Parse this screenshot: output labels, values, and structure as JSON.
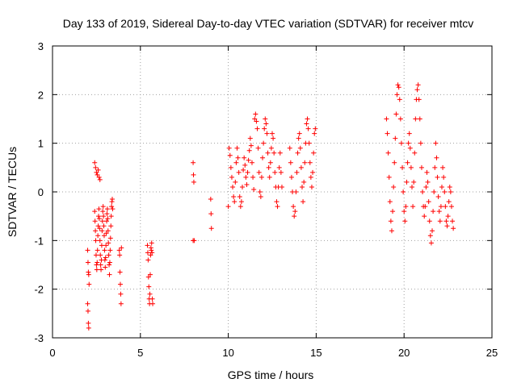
{
  "chart_data": {
    "type": "scatter",
    "title": "Day 133 of 2019, Sidereal Day-to-day VTEC variation (SDTVAR) for receiver mtcv",
    "xlabel": "GPS time / hours",
    "ylabel": "SDTVAR / TECUs",
    "xlim": [
      0,
      25
    ],
    "ylim": [
      -3,
      3
    ],
    "xticks": [
      0,
      5,
      10,
      15,
      20,
      25
    ],
    "yticks": [
      -3,
      -2,
      -1,
      0,
      1,
      2,
      3
    ],
    "xtick_labels": [
      "0",
      "5",
      "10",
      "15",
      "20",
      "25"
    ],
    "ytick_labels": [
      "-3",
      "-2",
      "-1",
      "0",
      "1",
      "2",
      "3"
    ],
    "grid": true,
    "marker": "+",
    "series_color": "#ff0000",
    "series": [
      {
        "name": "SDTVAR",
        "points": [
          [
            2.0,
            -1.2
          ],
          [
            2.02,
            -1.45
          ],
          [
            2.04,
            -1.65
          ],
          [
            2.06,
            -1.7
          ],
          [
            2.0,
            -2.3
          ],
          [
            2.02,
            -2.45
          ],
          [
            2.04,
            -2.7
          ],
          [
            2.06,
            -2.8
          ],
          [
            2.08,
            -1.9
          ],
          [
            2.4,
            0.6
          ],
          [
            2.45,
            0.5
          ],
          [
            2.5,
            0.4
          ],
          [
            2.55,
            0.35
          ],
          [
            2.6,
            0.45
          ],
          [
            2.65,
            0.3
          ],
          [
            2.7,
            0.25
          ],
          [
            2.4,
            -0.4
          ],
          [
            2.42,
            -0.6
          ],
          [
            2.44,
            -0.8
          ],
          [
            2.46,
            -1.0
          ],
          [
            2.48,
            -1.3
          ],
          [
            2.5,
            -1.5
          ],
          [
            2.52,
            -1.6
          ],
          [
            2.54,
            -1.45
          ],
          [
            2.56,
            -1.2
          ],
          [
            2.58,
            -0.9
          ],
          [
            2.6,
            -0.7
          ],
          [
            2.62,
            -0.5
          ],
          [
            2.64,
            -0.35
          ],
          [
            2.66,
            -0.55
          ],
          [
            2.68,
            -0.75
          ],
          [
            2.7,
            -1.0
          ],
          [
            2.72,
            -1.3
          ],
          [
            2.74,
            -1.5
          ],
          [
            2.76,
            -1.6
          ],
          [
            2.78,
            -1.4
          ],
          [
            2.8,
            -1.1
          ],
          [
            2.82,
            -0.8
          ],
          [
            2.84,
            -0.6
          ],
          [
            2.86,
            -0.4
          ],
          [
            2.88,
            -0.3
          ],
          [
            2.9,
            -0.5
          ],
          [
            2.92,
            -0.7
          ],
          [
            2.94,
            -0.9
          ],
          [
            2.96,
            -1.2
          ],
          [
            2.98,
            -1.4
          ],
          [
            3.0,
            -1.55
          ],
          [
            3.02,
            -1.35
          ],
          [
            3.04,
            -1.1
          ],
          [
            3.06,
            -0.85
          ],
          [
            3.08,
            -0.6
          ],
          [
            3.1,
            -0.45
          ],
          [
            3.12,
            -0.35
          ],
          [
            3.14,
            -0.55
          ],
          [
            3.16,
            -0.8
          ],
          [
            3.18,
            -1.05
          ],
          [
            3.2,
            -1.3
          ],
          [
            3.22,
            -1.5
          ],
          [
            3.24,
            -1.7
          ],
          [
            3.26,
            -1.45
          ],
          [
            3.28,
            -1.2
          ],
          [
            3.3,
            -0.95
          ],
          [
            3.32,
            -0.7
          ],
          [
            3.34,
            -0.5
          ],
          [
            3.36,
            -0.3
          ],
          [
            3.38,
            -0.2
          ],
          [
            3.4,
            -0.15
          ],
          [
            3.42,
            -0.35
          ],
          [
            3.8,
            -1.2
          ],
          [
            3.82,
            -1.3
          ],
          [
            3.84,
            -1.65
          ],
          [
            3.86,
            -1.9
          ],
          [
            3.88,
            -2.1
          ],
          [
            3.9,
            -2.3
          ],
          [
            3.92,
            -1.15
          ],
          [
            5.4,
            -1.1
          ],
          [
            5.42,
            -1.25
          ],
          [
            5.44,
            -1.4
          ],
          [
            5.46,
            -1.75
          ],
          [
            5.48,
            -1.95
          ],
          [
            5.5,
            -2.2
          ],
          [
            5.52,
            -2.3
          ],
          [
            5.54,
            -2.1
          ],
          [
            5.56,
            -1.7
          ],
          [
            5.58,
            -1.3
          ],
          [
            5.6,
            -1.15
          ],
          [
            5.62,
            -1.2
          ],
          [
            5.64,
            -1.05
          ],
          [
            5.66,
            -1.25
          ],
          [
            5.68,
            -2.2
          ],
          [
            5.7,
            -2.3
          ],
          [
            8.0,
            0.6
          ],
          [
            8.02,
            0.35
          ],
          [
            8.04,
            0.2
          ],
          [
            8.06,
            -1.0
          ],
          [
            8.0,
            -1.0
          ],
          [
            9.0,
            -0.15
          ],
          [
            9.02,
            -0.45
          ],
          [
            9.04,
            -0.75
          ],
          [
            10.0,
            -0.3
          ],
          [
            10.05,
            0.9
          ],
          [
            10.1,
            0.75
          ],
          [
            10.15,
            0.5
          ],
          [
            10.2,
            0.3
          ],
          [
            10.25,
            0.1
          ],
          [
            10.3,
            -0.1
          ],
          [
            10.35,
            -0.2
          ],
          [
            10.4,
            0.2
          ],
          [
            10.45,
            0.6
          ],
          [
            10.5,
            0.9
          ],
          [
            10.55,
            0.7
          ],
          [
            10.6,
            0.4
          ],
          [
            10.65,
            -0.1
          ],
          [
            10.7,
            -0.3
          ],
          [
            10.75,
            -0.2
          ],
          [
            10.8,
            0.1
          ],
          [
            10.85,
            0.45
          ],
          [
            10.9,
            0.7
          ],
          [
            10.95,
            0.55
          ],
          [
            11.0,
            0.3
          ],
          [
            11.05,
            0.15
          ],
          [
            11.1,
            0.4
          ],
          [
            11.15,
            0.65
          ],
          [
            11.2,
            0.85
          ],
          [
            11.25,
            1.1
          ],
          [
            11.3,
            0.95
          ],
          [
            11.35,
            0.6
          ],
          [
            11.4,
            0.3
          ],
          [
            11.45,
            0.05
          ],
          [
            11.5,
            1.5
          ],
          [
            11.55,
            1.6
          ],
          [
            11.6,
            1.45
          ],
          [
            11.65,
            1.3
          ],
          [
            11.7,
            0.9
          ],
          [
            11.75,
            0.4
          ],
          [
            11.8,
            0.0
          ],
          [
            11.85,
            -0.1
          ],
          [
            11.9,
            0.3
          ],
          [
            11.95,
            0.7
          ],
          [
            12.0,
            1.0
          ],
          [
            12.05,
            1.3
          ],
          [
            12.1,
            1.5
          ],
          [
            12.15,
            1.4
          ],
          [
            12.2,
            1.2
          ],
          [
            12.25,
            0.8
          ],
          [
            12.3,
            0.5
          ],
          [
            12.35,
            0.3
          ],
          [
            12.4,
            0.6
          ],
          [
            12.45,
            0.9
          ],
          [
            12.5,
            1.2
          ],
          [
            12.55,
            1.1
          ],
          [
            12.6,
            0.8
          ],
          [
            12.65,
            0.4
          ],
          [
            12.7,
            0.1
          ],
          [
            12.75,
            -0.2
          ],
          [
            12.8,
            -0.3
          ],
          [
            12.85,
            0.1
          ],
          [
            12.9,
            0.5
          ],
          [
            12.95,
            0.8
          ],
          [
            13.0,
            0.4
          ],
          [
            13.05,
            0.1
          ],
          [
            13.5,
            0.9
          ],
          [
            13.55,
            0.6
          ],
          [
            13.6,
            0.3
          ],
          [
            13.65,
            0.0
          ],
          [
            13.7,
            -0.3
          ],
          [
            13.75,
            -0.5
          ],
          [
            13.8,
            -0.4
          ],
          [
            13.85,
            0.0
          ],
          [
            13.9,
            0.4
          ],
          [
            13.95,
            0.8
          ],
          [
            14.0,
            1.1
          ],
          [
            14.05,
            1.2
          ],
          [
            14.1,
            0.9
          ],
          [
            14.15,
            0.5
          ],
          [
            14.2,
            0.1
          ],
          [
            14.25,
            -0.2
          ],
          [
            14.3,
            0.2
          ],
          [
            14.35,
            0.6
          ],
          [
            14.4,
            1.0
          ],
          [
            14.45,
            1.4
          ],
          [
            14.5,
            1.5
          ],
          [
            14.55,
            1.3
          ],
          [
            14.6,
            1.0
          ],
          [
            14.65,
            0.6
          ],
          [
            14.7,
            0.3
          ],
          [
            14.75,
            0.1
          ],
          [
            14.8,
            0.4
          ],
          [
            14.85,
            0.8
          ],
          [
            14.9,
            1.2
          ],
          [
            14.95,
            1.3
          ],
          [
            19.0,
            1.5
          ],
          [
            19.05,
            1.2
          ],
          [
            19.1,
            0.8
          ],
          [
            19.15,
            0.3
          ],
          [
            19.2,
            -0.2
          ],
          [
            19.25,
            -0.6
          ],
          [
            19.3,
            -0.8
          ],
          [
            19.35,
            -0.4
          ],
          [
            19.4,
            0.1
          ],
          [
            19.45,
            0.6
          ],
          [
            19.5,
            1.1
          ],
          [
            19.55,
            1.6
          ],
          [
            19.6,
            2.0
          ],
          [
            19.65,
            2.2
          ],
          [
            19.7,
            2.15
          ],
          [
            19.75,
            1.9
          ],
          [
            19.8,
            1.5
          ],
          [
            19.85,
            1.0
          ],
          [
            19.9,
            0.5
          ],
          [
            19.95,
            0.0
          ],
          [
            20.0,
            -0.4
          ],
          [
            20.05,
            -0.6
          ],
          [
            20.1,
            -0.3
          ],
          [
            20.15,
            0.2
          ],
          [
            20.2,
            0.6
          ],
          [
            20.25,
            1.0
          ],
          [
            20.3,
            1.2
          ],
          [
            20.35,
            0.9
          ],
          [
            20.4,
            0.5
          ],
          [
            20.45,
            0.1
          ],
          [
            20.5,
            -0.3
          ],
          [
            20.55,
            0.2
          ],
          [
            20.6,
            0.8
          ],
          [
            20.65,
            1.5
          ],
          [
            20.7,
            1.9
          ],
          [
            20.75,
            2.1
          ],
          [
            20.8,
            2.2
          ],
          [
            20.85,
            1.9
          ],
          [
            20.9,
            1.5
          ],
          [
            20.95,
            1.0
          ],
          [
            21.0,
            0.5
          ],
          [
            21.05,
            0.0
          ],
          [
            21.1,
            -0.3
          ],
          [
            21.15,
            -0.5
          ],
          [
            21.2,
            -0.3
          ],
          [
            21.25,
            0.1
          ],
          [
            21.3,
            0.4
          ],
          [
            21.35,
            0.2
          ],
          [
            21.4,
            -0.2
          ],
          [
            21.45,
            -0.6
          ],
          [
            21.5,
            -0.9
          ],
          [
            21.55,
            -1.05
          ],
          [
            21.6,
            -0.8
          ],
          [
            21.65,
            -0.4
          ],
          [
            21.7,
            0.0
          ],
          [
            21.75,
            0.5
          ],
          [
            21.8,
            1.0
          ],
          [
            21.85,
            0.7
          ],
          [
            21.9,
            0.3
          ],
          [
            21.95,
            -0.1
          ],
          [
            22.0,
            -0.4
          ],
          [
            22.05,
            -0.6
          ],
          [
            22.1,
            -0.3
          ],
          [
            22.15,
            0.1
          ],
          [
            22.2,
            0.5
          ],
          [
            22.25,
            0.3
          ],
          [
            22.3,
            0.0
          ],
          [
            22.35,
            -0.3
          ],
          [
            22.4,
            -0.6
          ],
          [
            22.45,
            -0.7
          ],
          [
            22.5,
            -0.5
          ],
          [
            22.55,
            -0.2
          ],
          [
            22.6,
            0.1
          ],
          [
            22.65,
            0.0
          ],
          [
            22.7,
            -0.3
          ],
          [
            22.75,
            -0.6
          ],
          [
            22.8,
            -0.75
          ]
        ]
      }
    ]
  }
}
